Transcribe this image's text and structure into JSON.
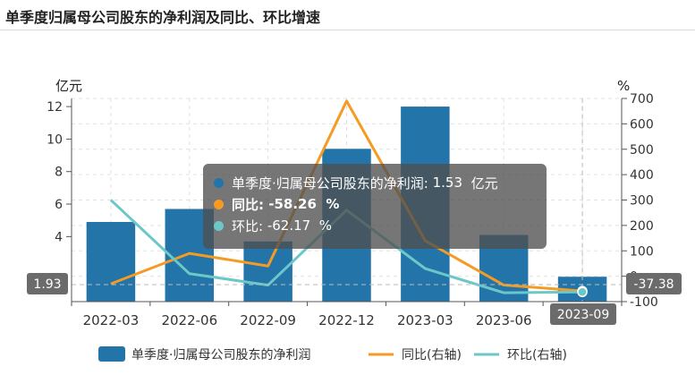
{
  "title": "单季度归属母公司股东的净利润及同比、环比增速",
  "chart_data": {
    "type": "bar+line",
    "categories": [
      "2022-03",
      "2022-06",
      "2022-09",
      "2022-12",
      "2023-03",
      "2023-06",
      "2023-09"
    ],
    "left_axis": {
      "unit": "亿元",
      "ticks": [
        4,
        6,
        8,
        10,
        12
      ],
      "ylim": [
        0,
        12.5
      ]
    },
    "right_axis": {
      "unit": "%",
      "ticks": [
        -100,
        0,
        100,
        200,
        300,
        400,
        500,
        600,
        700
      ],
      "ylim": [
        -100,
        700
      ]
    },
    "series": [
      {
        "name": "单季度·归属母公司股东的净利润",
        "kind": "bar",
        "axis": "left",
        "color": "#2374a8",
        "values": [
          4.9,
          5.7,
          3.7,
          9.4,
          12.0,
          4.1,
          1.53
        ]
      },
      {
        "name": "同比(右轴)",
        "kind": "line",
        "axis": "right",
        "color": "#f59a23",
        "values": [
          -30,
          90,
          40,
          690,
          140,
          -35,
          -58.26
        ]
      },
      {
        "name": "环比(右轴)",
        "kind": "line",
        "axis": "right",
        "color": "#6cc7c8",
        "values": [
          300,
          10,
          -35,
          260,
          30,
          -65,
          -62.17
        ]
      }
    ],
    "crosshair": {
      "category": "2023-09",
      "left_value_label": "1.93",
      "right_value_label": "-37.38"
    },
    "tooltip": {
      "rows": [
        {
          "label": "单季度·归属母公司股东的净利润:",
          "value": "1.53",
          "unit": "亿元",
          "color": "#2374a8"
        },
        {
          "label": "同比:",
          "value": "-58.26",
          "unit": "%",
          "color": "#f59a23"
        },
        {
          "label": "环比:",
          "value": "-62.17",
          "unit": "%",
          "color": "#6cc7c8"
        }
      ]
    },
    "legend": [
      "单季度·归属母公司股东的净利润",
      "同比(右轴)",
      "环比(右轴)"
    ],
    "legend_position": "bottom",
    "grid": true
  }
}
